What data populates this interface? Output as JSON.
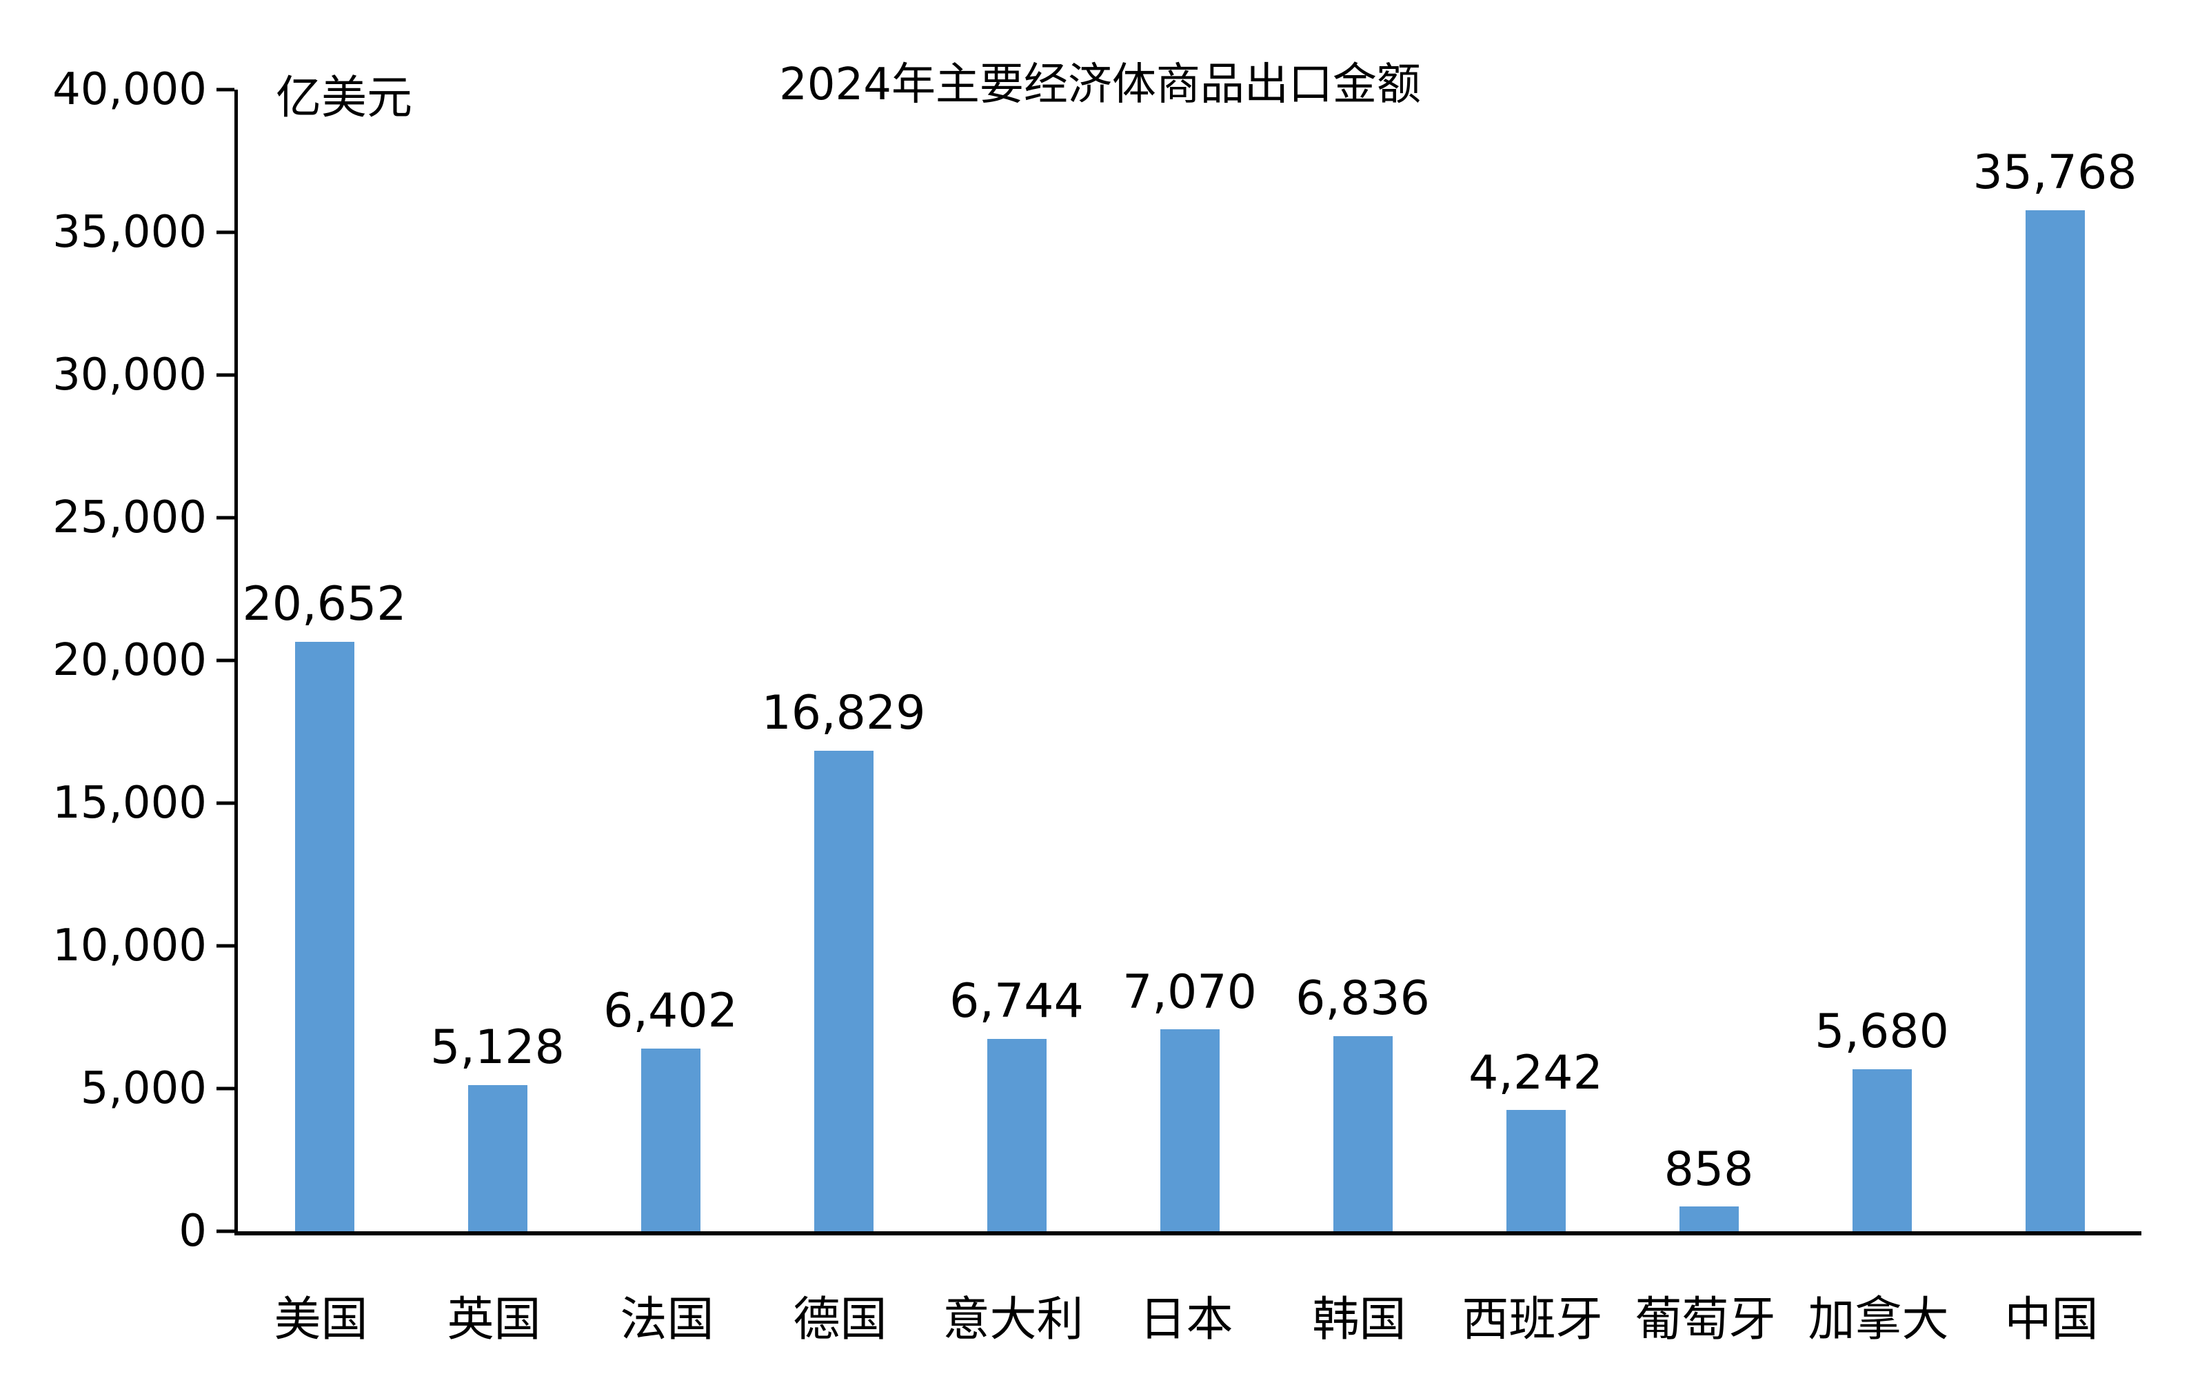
{
  "colors": {
    "bar": "#5B9BD5",
    "axis": "#000000",
    "background": "#FFFFFF",
    "text": "#000000"
  },
  "chart_data": {
    "type": "bar",
    "title": "2024年主要经济体商品出口金额",
    "ylabel": "亿美元",
    "xlabel": "",
    "categories": [
      "美国",
      "英国",
      "法国",
      "德国",
      "意大利",
      "日本",
      "韩国",
      "西班牙",
      "葡萄牙",
      "加拿大",
      "中国"
    ],
    "values": [
      20652,
      5128,
      6402,
      16829,
      6744,
      7070,
      6836,
      4242,
      858,
      5680,
      35768
    ],
    "value_labels": [
      "20,652",
      "5,128",
      "6,402",
      "16,829",
      "6,744",
      "7,070",
      "6,836",
      "4,242",
      "858",
      "5,680",
      "35,768"
    ],
    "ylim": [
      0,
      40000
    ],
    "ytick_interval": 5000,
    "yticks": [
      "0",
      "5,000",
      "10,000",
      "15,000",
      "20,000",
      "25,000",
      "30,000",
      "35,000",
      "40,000"
    ],
    "grid": false,
    "legend_position": "none"
  }
}
